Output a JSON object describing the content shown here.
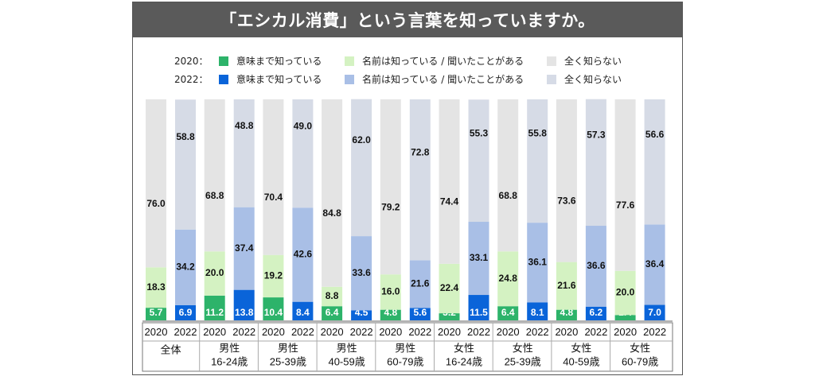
{
  "title": "「エシカル消費」という言葉を知っていますか。",
  "legend": [
    {
      "year": "2020：",
      "items": [
        {
          "label": "意味まで知っている",
          "color": "#2db36a"
        },
        {
          "label": "名前は知っている / 聞いたことがある",
          "color": "#d4f2c2"
        },
        {
          "label": "全く知らない",
          "color": "#e4e4e4"
        }
      ]
    },
    {
      "year": "2022：",
      "items": [
        {
          "label": "意味まで知っている",
          "color": "#0a64d9"
        },
        {
          "label": "名前は知っている / 聞いたことがある",
          "color": "#a9bfe6"
        },
        {
          "label": "全く知らない",
          "color": "#d6dbe6"
        }
      ]
    }
  ],
  "chart_data": {
    "type": "bar",
    "stacked": true,
    "ylim": [
      0,
      100
    ],
    "grid": false,
    "year_labels": [
      "2020",
      "2022"
    ],
    "groups": [
      {
        "label_line1": "全体",
        "label_line2": "",
        "bars": [
          {
            "year": "2020",
            "values": [
              5.7,
              18.3,
              76.0
            ]
          },
          {
            "year": "2022",
            "values": [
              6.9,
              34.2,
              58.8
            ]
          }
        ]
      },
      {
        "label_line1": "男性",
        "label_line2": "16-24歳",
        "bars": [
          {
            "year": "2020",
            "values": [
              11.2,
              20.0,
              68.8
            ]
          },
          {
            "year": "2022",
            "values": [
              13.8,
              37.4,
              48.8
            ]
          }
        ]
      },
      {
        "label_line1": "男性",
        "label_line2": "25-39歳",
        "bars": [
          {
            "year": "2020",
            "values": [
              10.4,
              19.2,
              70.4
            ]
          },
          {
            "year": "2022",
            "values": [
              8.4,
              42.6,
              49.0
            ]
          }
        ]
      },
      {
        "label_line1": "男性",
        "label_line2": "40-59歳",
        "bars": [
          {
            "year": "2020",
            "values": [
              6.4,
              8.8,
              84.8
            ]
          },
          {
            "year": "2022",
            "values": [
              4.5,
              33.6,
              62.0
            ]
          }
        ]
      },
      {
        "label_line1": "男性",
        "label_line2": "60-79歳",
        "bars": [
          {
            "year": "2020",
            "values": [
              4.8,
              16.0,
              79.2
            ]
          },
          {
            "year": "2022",
            "values": [
              5.6,
              21.6,
              72.8
            ]
          }
        ]
      },
      {
        "label_line1": "女性",
        "label_line2": "16-24歳",
        "bars": [
          {
            "year": "2020",
            "values": [
              3.2,
              22.4,
              74.4
            ]
          },
          {
            "year": "2022",
            "values": [
              11.5,
              33.1,
              55.3
            ]
          }
        ]
      },
      {
        "label_line1": "女性",
        "label_line2": "25-39歳",
        "bars": [
          {
            "year": "2020",
            "values": [
              6.4,
              24.8,
              68.8
            ]
          },
          {
            "year": "2022",
            "values": [
              8.1,
              36.1,
              55.8
            ]
          }
        ]
      },
      {
        "label_line1": "女性",
        "label_line2": "40-59歳",
        "bars": [
          {
            "year": "2020",
            "values": [
              4.8,
              21.6,
              73.6
            ]
          },
          {
            "year": "2022",
            "values": [
              6.2,
              36.6,
              57.3
            ]
          }
        ]
      },
      {
        "label_line1": "女性",
        "label_line2": "60-79歳",
        "bars": [
          {
            "year": "2020",
            "values": [
              2.4,
              20.0,
              77.6
            ]
          },
          {
            "year": "2022",
            "values": [
              7.0,
              36.4,
              56.6
            ]
          }
        ]
      }
    ]
  }
}
